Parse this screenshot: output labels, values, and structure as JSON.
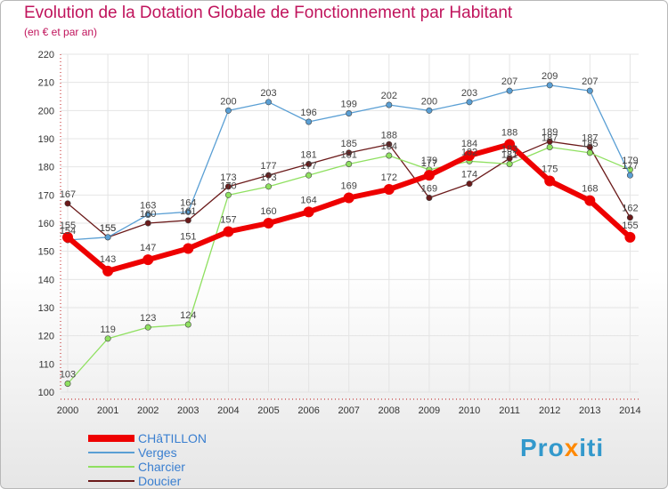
{
  "chart_data": {
    "type": "line",
    "title": "Evolution de la Dotation Globale de Fonctionnement par Habitant",
    "subtitle": "(en € et par an)",
    "categories": [
      "2000",
      "2001",
      "2002",
      "2003",
      "2004",
      "2005",
      "2006",
      "2007",
      "2008",
      "2009",
      "2010",
      "2011",
      "2012",
      "2013",
      "2014"
    ],
    "yticks": [
      100,
      110,
      120,
      130,
      140,
      150,
      160,
      170,
      180,
      190,
      200,
      210,
      220
    ],
    "ylim": [
      100,
      220
    ],
    "grid": true,
    "legend_position": "bottom-left",
    "series": [
      {
        "name": "Doucier",
        "color": "#6b1a1a",
        "values": [
          167,
          155,
          160,
          161,
          173,
          177,
          181,
          185,
          188,
          169,
          174,
          183,
          189,
          187,
          162
        ]
      },
      {
        "name": "Charcier",
        "color": "#8fe060",
        "values": [
          103,
          119,
          123,
          124,
          170,
          173,
          177,
          181,
          184,
          179,
          182,
          181,
          187,
          185,
          179
        ]
      },
      {
        "name": "Verges",
        "color": "#5a9fd4",
        "values": [
          154,
          155,
          163,
          164,
          200,
          203,
          196,
          199,
          202,
          200,
          203,
          207,
          209,
          207,
          177
        ]
      },
      {
        "name": "CHâTILLON",
        "color": "#ee0000",
        "values": [
          155,
          143,
          147,
          151,
          157,
          160,
          164,
          169,
          172,
          177,
          184,
          188,
          175,
          168,
          155
        ]
      }
    ],
    "labels": [
      [
        "155",
        "143",
        "147",
        "151",
        "157",
        "160",
        "164",
        "169",
        "172",
        "177",
        "184",
        "188",
        "175",
        "168",
        "155"
      ],
      [
        "154",
        "155",
        "163",
        "164",
        "200",
        "203",
        "196",
        "199",
        "202",
        "200",
        "203",
        "207",
        "209",
        "207",
        "177"
      ],
      [
        "103",
        "119",
        "123",
        "124",
        "170",
        "173",
        "177",
        "181",
        "184",
        "179",
        "182",
        "181",
        "187",
        "185",
        "179"
      ],
      [
        "167",
        "155",
        "160",
        "161",
        "173",
        "177",
        "181",
        "185",
        "188",
        "169",
        "174",
        "183",
        "189",
        "187",
        "162"
      ]
    ]
  },
  "legend": [
    {
      "name": "CHâTILLON",
      "color": "#ee0000"
    },
    {
      "name": "Verges",
      "color": "#5a9fd4"
    },
    {
      "name": "Charcier",
      "color": "#8fe060"
    },
    {
      "name": "Doucier",
      "color": "#6b1a1a"
    }
  ],
  "brand": {
    "part1": "Pro",
    "part2": "x",
    "part3": "iti"
  }
}
